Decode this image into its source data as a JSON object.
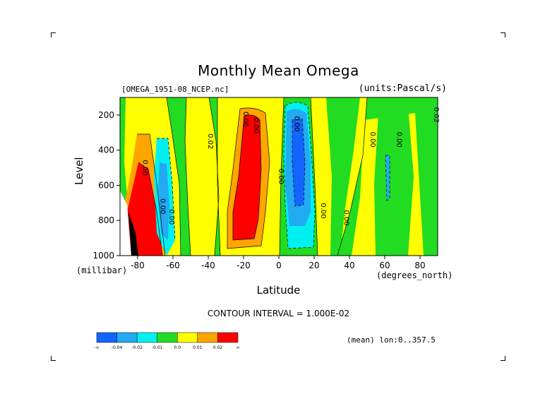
{
  "title": "Monthly Mean Omega",
  "file_label": "[OMEGA_1951-08_NCEP.nc]",
  "units_label": "(units:Pascal/s)",
  "x_axis": {
    "label": "Latitude",
    "unit": "(degrees_north)",
    "ticks": [
      "-80",
      "-60",
      "-40",
      "-20",
      "0",
      "20",
      "40",
      "60",
      "80"
    ]
  },
  "y_axis": {
    "label": "Level",
    "unit": "(millibar)",
    "ticks": [
      "200",
      "400",
      "600",
      "800",
      "1000"
    ]
  },
  "contour_interval": "CONTOUR INTERVAL = 1.000E-02",
  "region": "(mean) lon:0..357.5",
  "colorbar": {
    "colors": [
      "#1464ff",
      "#22aaf2",
      "#00f0f0",
      "#22dc22",
      "#ffff00",
      "#ffa500",
      "#ff0000"
    ],
    "labels": [
      "-∞",
      "-0.04",
      "-0.02",
      "-0.01",
      "0.0",
      "0.01",
      "0.02",
      "∞"
    ]
  },
  "contour_labels": [
    "0.00",
    "0.00",
    "0.00",
    "0.00",
    "0.00",
    "0.00",
    "0.00",
    "0.00",
    "0.00",
    "0.00",
    "0.00",
    "0.02",
    "0.02"
  ],
  "colors": {
    "background": "#ffffff",
    "plot_fill": "#22dc22",
    "positive": "#ff0000",
    "negative": "#1464ff"
  },
  "chart_data": {
    "type": "heatmap",
    "title": "Monthly Mean Omega",
    "xlabel": "Latitude",
    "ylabel": "Level",
    "x_unit": "degrees_north",
    "y_unit": "millibar",
    "xlim": [
      -90,
      90
    ],
    "ylim": [
      1000,
      100
    ],
    "y_reversed": true,
    "z_unit": "Pascal/s",
    "contour_interval": 0.01,
    "levels": [
      -0.04,
      -0.02,
      -0.01,
      0.0,
      0.01,
      0.02
    ],
    "x": [
      -85,
      -75,
      -65,
      -55,
      -45,
      -35,
      -25,
      -15,
      -5,
      5,
      15,
      25,
      35,
      45,
      55,
      65,
      75,
      85
    ],
    "y": [
      150,
      300,
      450,
      600,
      750,
      900
    ],
    "z": [
      [
        0.005,
        0.012,
        -0.015,
        -0.005,
        -0.002,
        0.008,
        0.022,
        0.014,
        0.004,
        -0.025,
        -0.018,
        0.003,
        0.004,
        0.005,
        -0.004,
        0.003,
        0.004,
        -0.003
      ],
      [
        0.006,
        0.018,
        -0.022,
        -0.006,
        -0.004,
        0.012,
        0.028,
        0.018,
        0.005,
        -0.035,
        -0.028,
        0.004,
        0.003,
        0.004,
        -0.006,
        0.002,
        0.003,
        -0.004
      ],
      [
        0.012,
        0.025,
        -0.025,
        -0.008,
        -0.005,
        0.015,
        0.03,
        0.02,
        0.004,
        -0.038,
        -0.03,
        0.003,
        0.002,
        0.003,
        -0.012,
        0.002,
        0.002,
        -0.005
      ],
      [
        0.02,
        0.035,
        -0.03,
        -0.008,
        -0.006,
        0.016,
        0.03,
        0.018,
        0.003,
        -0.036,
        -0.028,
        0.002,
        -0.003,
        0.002,
        -0.008,
        0.003,
        0.002,
        -0.003
      ],
      [
        0.015,
        0.04,
        -0.02,
        -0.006,
        -0.004,
        0.015,
        0.025,
        0.012,
        0.002,
        -0.03,
        -0.022,
        0.004,
        -0.004,
        0.003,
        -0.015,
        0.002,
        0.003,
        -0.002
      ],
      [
        0.01,
        0.03,
        -0.01,
        -0.004,
        -0.003,
        0.012,
        0.02,
        0.008,
        0.002,
        -0.02,
        -0.015,
        0.005,
        -0.002,
        0.004,
        -0.002,
        0.003,
        0.004,
        0.003
      ]
    ],
    "colorbar_labels": [
      "-∞",
      "-0.04",
      "-0.02",
      "-0.01",
      "0.0",
      "0.01",
      "0.02",
      "∞"
    ]
  }
}
